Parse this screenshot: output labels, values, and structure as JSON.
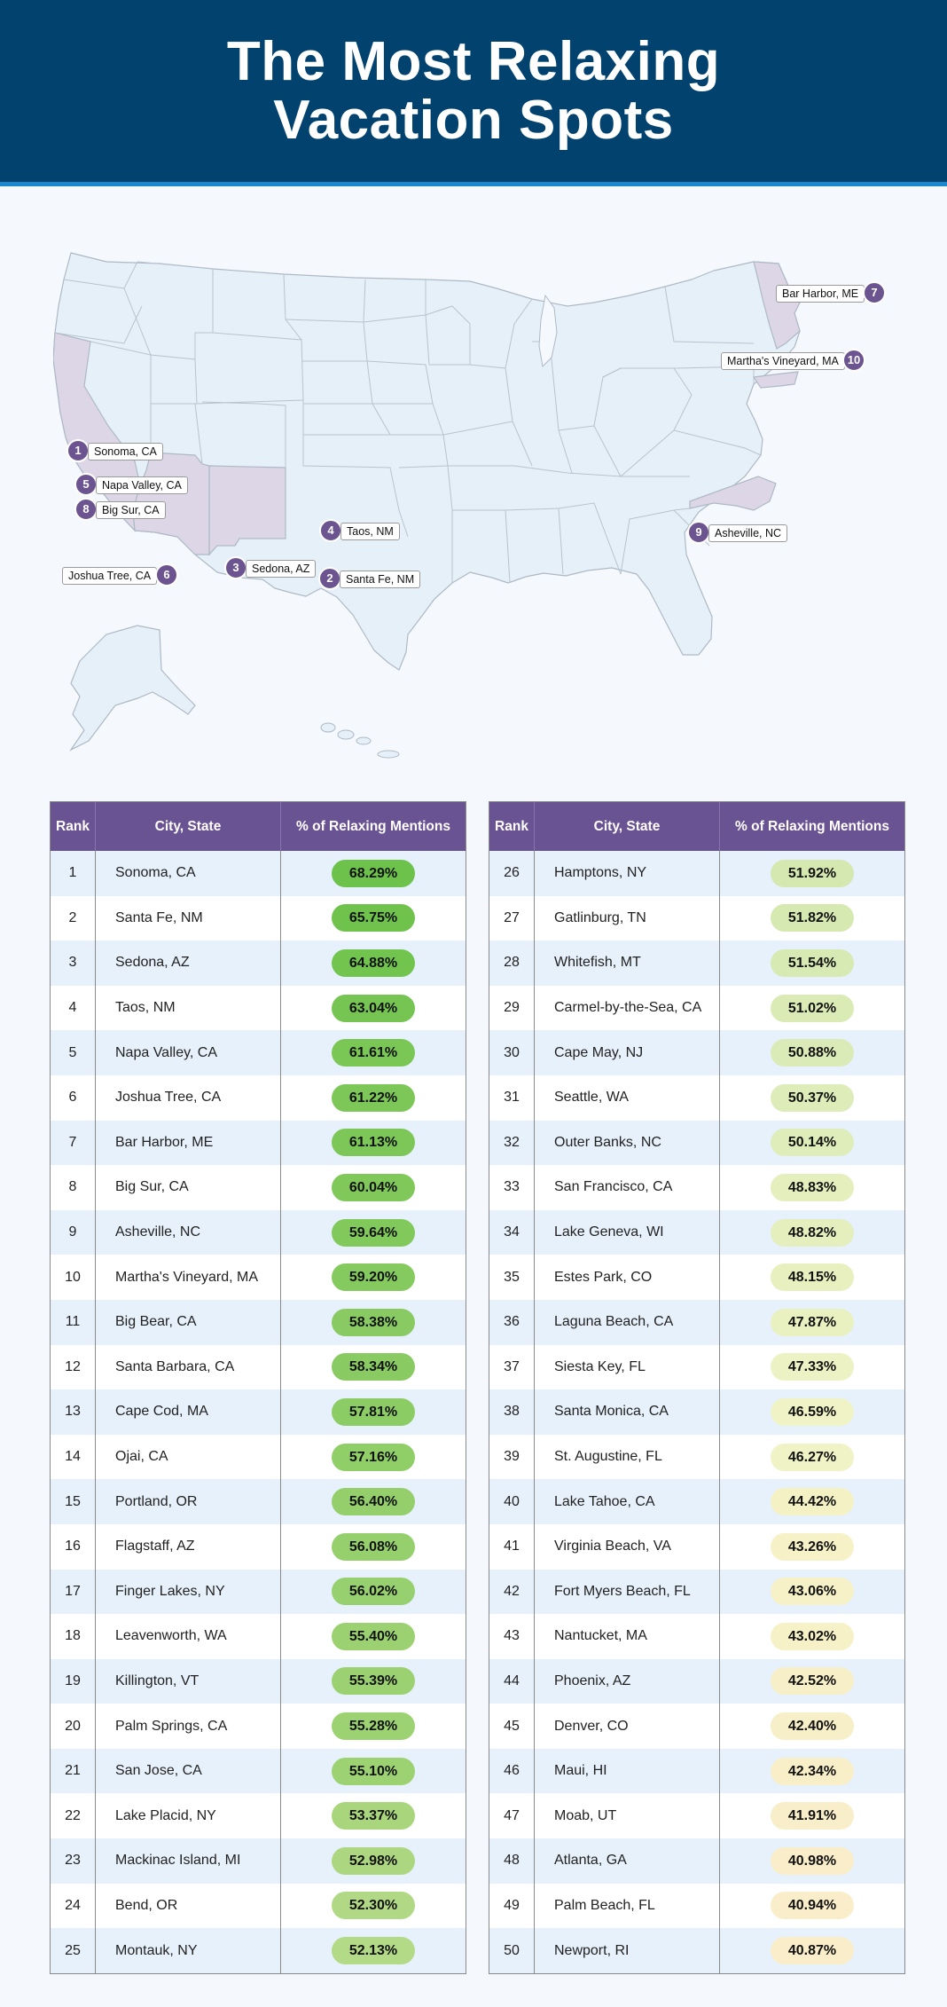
{
  "title": {
    "line1": "The Most Relaxing",
    "line2": "Vacation Spots"
  },
  "map": {
    "highlight_color": "#dcd6e7",
    "markers": [
      {
        "rank": "1",
        "label": "Sonoma, CA"
      },
      {
        "rank": "2",
        "label": "Santa Fe, NM"
      },
      {
        "rank": "3",
        "label": "Sedona, AZ"
      },
      {
        "rank": "4",
        "label": "Taos, NM"
      },
      {
        "rank": "5",
        "label": "Napa Valley, CA"
      },
      {
        "rank": "6",
        "label": "Joshua Tree, CA"
      },
      {
        "rank": "7",
        "label": "Bar Harbor, ME"
      },
      {
        "rank": "8",
        "label": "Big Sur, CA"
      },
      {
        "rank": "9",
        "label": "Asheville, NC"
      },
      {
        "rank": "10",
        "label": "Martha's Vineyard, MA"
      }
    ]
  },
  "table": {
    "headers": {
      "rank": "Rank",
      "city": "City, State",
      "pct": "% of Relaxing Mentions"
    },
    "rows": [
      {
        "rank": "1",
        "city": "Sonoma, CA",
        "pct": "68.29%",
        "color": "#6cc24a"
      },
      {
        "rank": "2",
        "city": "Santa Fe, NM",
        "pct": "65.75%",
        "color": "#6fc34c"
      },
      {
        "rank": "3",
        "city": "Sedona, AZ",
        "pct": "64.88%",
        "color": "#71c44e"
      },
      {
        "rank": "4",
        "city": "Taos, NM",
        "pct": "63.04%",
        "color": "#76c552"
      },
      {
        "rank": "5",
        "city": "Napa Valley, CA",
        "pct": "61.61%",
        "color": "#7ac756"
      },
      {
        "rank": "6",
        "city": "Joshua Tree, CA",
        "pct": "61.22%",
        "color": "#7cc757"
      },
      {
        "rank": "7",
        "city": "Bar Harbor, ME",
        "pct": "61.13%",
        "color": "#7cc757"
      },
      {
        "rank": "8",
        "city": "Big Sur, CA",
        "pct": "60.04%",
        "color": "#80c85a"
      },
      {
        "rank": "9",
        "city": "Asheville, NC",
        "pct": "59.64%",
        "color": "#82c95c"
      },
      {
        "rank": "10",
        "city": "Martha's Vineyard, MA",
        "pct": "59.20%",
        "color": "#85ca5e"
      },
      {
        "rank": "11",
        "city": "Big Bear, CA",
        "pct": "58.38%",
        "color": "#89cb62"
      },
      {
        "rank": "12",
        "city": "Santa Barbara, CA",
        "pct": "58.34%",
        "color": "#89cb62"
      },
      {
        "rank": "13",
        "city": "Cape Cod, MA",
        "pct": "57.81%",
        "color": "#8ccc65"
      },
      {
        "rank": "14",
        "city": "Ojai, CA",
        "pct": "57.16%",
        "color": "#90ce68"
      },
      {
        "rank": "15",
        "city": "Portland, OR",
        "pct": "56.40%",
        "color": "#94cf6b"
      },
      {
        "rank": "16",
        "city": "Flagstaff, AZ",
        "pct": "56.08%",
        "color": "#96d06d"
      },
      {
        "rank": "17",
        "city": "Finger Lakes, NY",
        "pct": "56.02%",
        "color": "#97d06e"
      },
      {
        "rank": "18",
        "city": "Leavenworth, WA",
        "pct": "55.40%",
        "color": "#9bd171"
      },
      {
        "rank": "19",
        "city": "Killington, VT",
        "pct": "55.39%",
        "color": "#9bd171"
      },
      {
        "rank": "20",
        "city": "Palm Springs, CA",
        "pct": "55.28%",
        "color": "#9cd272"
      },
      {
        "rank": "21",
        "city": "San Jose, CA",
        "pct": "55.10%",
        "color": "#9dd273"
      },
      {
        "rank": "22",
        "city": "Lake Placid, NY",
        "pct": "53.37%",
        "color": "#a9d67d"
      },
      {
        "rank": "23",
        "city": "Mackinac Island, MI",
        "pct": "52.98%",
        "color": "#acd780"
      },
      {
        "rank": "24",
        "city": "Bend, OR",
        "pct": "52.30%",
        "color": "#b1d985"
      },
      {
        "rank": "25",
        "city": "Montauk, NY",
        "pct": "52.13%",
        "color": "#b3da87"
      },
      {
        "rank": "26",
        "city": "Hamptons, NY",
        "pct": "51.92%",
        "color": "#d4e8b0"
      },
      {
        "rank": "27",
        "city": "Gatlinburg, TN",
        "pct": "51.82%",
        "color": "#d5e9b1"
      },
      {
        "rank": "28",
        "city": "Whitefish, MT",
        "pct": "51.54%",
        "color": "#d7eab3"
      },
      {
        "rank": "29",
        "city": "Carmel-by-the-Sea, CA",
        "pct": "51.02%",
        "color": "#daebb6"
      },
      {
        "rank": "30",
        "city": "Cape May, NJ",
        "pct": "50.88%",
        "color": "#dbebb7"
      },
      {
        "rank": "31",
        "city": "Seattle, WA",
        "pct": "50.37%",
        "color": "#deecb9"
      },
      {
        "rank": "32",
        "city": "Outer Banks, NC",
        "pct": "50.14%",
        "color": "#dfedbb"
      },
      {
        "rank": "33",
        "city": "San Francisco, CA",
        "pct": "48.83%",
        "color": "#e5efbe"
      },
      {
        "rank": "34",
        "city": "Lake Geneva, WI",
        "pct": "48.82%",
        "color": "#e5efbe"
      },
      {
        "rank": "35",
        "city": "Estes Park, CO",
        "pct": "48.15%",
        "color": "#e8f0c0"
      },
      {
        "rank": "36",
        "city": "Laguna Beach, CA",
        "pct": "47.87%",
        "color": "#e9f1c1"
      },
      {
        "rank": "37",
        "city": "Siesta Key, FL",
        "pct": "47.33%",
        "color": "#ecf2c3"
      },
      {
        "rank": "38",
        "city": "Santa Monica, CA",
        "pct": "46.59%",
        "color": "#eff3c5"
      },
      {
        "rank": "39",
        "city": "St. Augustine, FL",
        "pct": "46.27%",
        "color": "#f0f3c6"
      },
      {
        "rank": "40",
        "city": "Lake Tahoe, CA",
        "pct": "44.42%",
        "color": "#f4f2c5"
      },
      {
        "rank": "41",
        "city": "Virginia Beach, VA",
        "pct": "43.26%",
        "color": "#f6f1c6"
      },
      {
        "rank": "42",
        "city": "Fort Myers Beach, FL",
        "pct": "43.06%",
        "color": "#f6f1c6"
      },
      {
        "rank": "43",
        "city": "Nantucket, MA",
        "pct": "43.02%",
        "color": "#f6f1c6"
      },
      {
        "rank": "44",
        "city": "Phoenix, AZ",
        "pct": "42.52%",
        "color": "#f7efc7"
      },
      {
        "rank": "45",
        "city": "Denver, CO",
        "pct": "42.40%",
        "color": "#f7efc7"
      },
      {
        "rank": "46",
        "city": "Maui, HI",
        "pct": "42.34%",
        "color": "#f8efc8"
      },
      {
        "rank": "47",
        "city": "Moab, UT",
        "pct": "41.91%",
        "color": "#f8eec9"
      },
      {
        "rank": "48",
        "city": "Atlanta, GA",
        "pct": "40.98%",
        "color": "#f9edca"
      },
      {
        "rank": "49",
        "city": "Palm Beach, FL",
        "pct": "40.94%",
        "color": "#f9edca"
      },
      {
        "rank": "50",
        "city": "Newport, RI",
        "pct": "40.87%",
        "color": "#f9edca"
      }
    ]
  }
}
